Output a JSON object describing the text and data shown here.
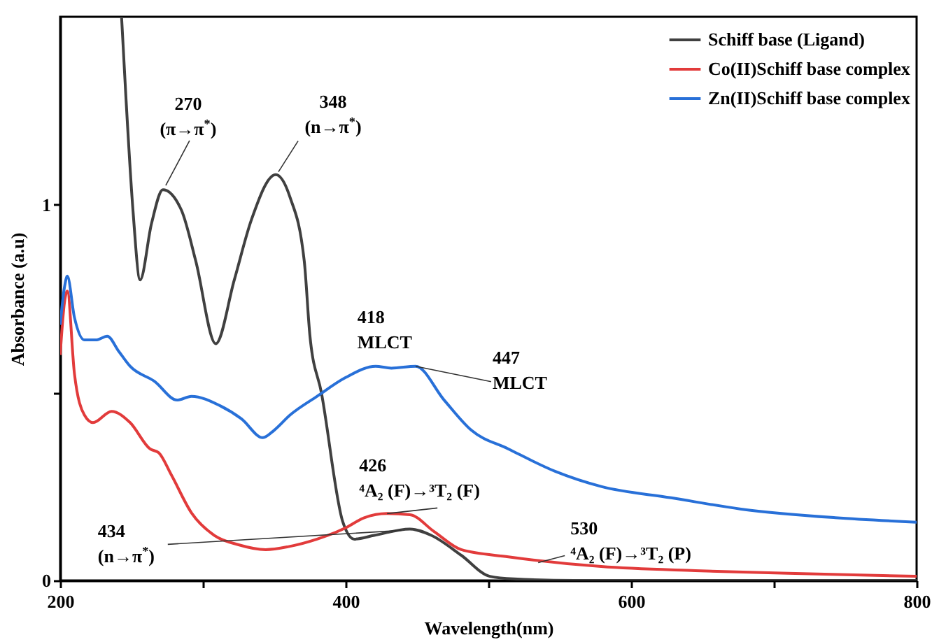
{
  "chart_data": {
    "type": "line",
    "xlabel": "Wavelength(nm)",
    "ylabel": "Absorbance (a.u)",
    "xlim": [
      200,
      800
    ],
    "ylim": [
      0,
      1.5
    ],
    "xticks": [
      200,
      {
        "value": 300,
        "label": null
      },
      400,
      {
        "value": 500,
        "label": null
      },
      600,
      {
        "value": 700,
        "label": null
      },
      800
    ],
    "yticks": [
      0,
      {
        "value": 0.5,
        "label": null
      },
      1
    ],
    "legend": "top right",
    "grid": false,
    "series": [
      {
        "name": "Schiff base (Ligand)",
        "color": "#404040",
        "x": [
          243,
          246,
          251,
          256,
          264,
          272,
          285,
          295,
          309,
          322,
          334,
          351,
          361,
          371,
          375,
          383,
          398,
          406,
          420,
          445,
          460,
          481,
          501,
          518,
          560,
          650,
          800
        ],
        "values": [
          1.5,
          1.29,
          0.985,
          0.8,
          0.95,
          1.04,
          0.985,
          0.85,
          0.63,
          0.8,
          0.96,
          1.08,
          1.02,
          0.85,
          0.65,
          0.5,
          0.156,
          0.11,
          0.12,
          0.137,
          0.12,
          0.067,
          0.011,
          0.004,
          0.0,
          0.0,
          0.0
        ]
      },
      {
        "name": "Co(II)Schiff base complex",
        "color": "#e23b3b",
        "x": [
          200,
          203,
          205,
          210,
          217,
          223,
          236,
          249,
          263,
          269,
          278,
          292,
          308,
          325,
          344,
          360,
          380,
          400,
          413,
          429,
          445,
          462,
          481,
          514,
          579,
          645,
          710,
          800
        ],
        "values": [
          0.6,
          0.74,
          0.77,
          0.55,
          0.44,
          0.42,
          0.45,
          0.42,
          0.35,
          0.34,
          0.28,
          0.18,
          0.12,
          0.095,
          0.082,
          0.09,
          0.11,
          0.14,
          0.167,
          0.178,
          0.175,
          0.13,
          0.082,
          0.063,
          0.037,
          0.026,
          0.019,
          0.011
        ]
      },
      {
        "name": "Zn(II)Schiff base complex",
        "color": "#2870d8",
        "x": [
          200,
          203,
          205,
          210,
          217,
          225,
          233,
          241,
          249,
          266,
          282,
          292,
          312,
          327,
          342,
          350,
          361,
          380,
          400,
          421,
          432,
          449,
          469,
          488,
          514,
          547,
          579,
          628,
          677,
          743,
          800
        ],
        "values": [
          0.68,
          0.78,
          0.81,
          0.7,
          0.64,
          0.64,
          0.65,
          0.61,
          0.57,
          0.53,
          0.48,
          0.49,
          0.465,
          0.43,
          0.38,
          0.4,
          0.44,
          0.49,
          0.54,
          0.57,
          0.565,
          0.57,
          0.48,
          0.4,
          0.35,
          0.29,
          0.25,
          0.22,
          0.19,
          0.167,
          0.155
        ]
      }
    ],
    "annotations": [
      {
        "text": "270\n(π→π$^{*}$)",
        "x": 272,
        "y": 1.04
      },
      {
        "text": "348\n(n→π$^{*}$)",
        "x": 350,
        "y": 1.08
      },
      {
        "text": "418\nMLCT",
        "x": 421,
        "y": 0.57
      },
      {
        "text": "447\nMLCT",
        "x": 449,
        "y": 0.57
      },
      {
        "text": "426\n⁴A₂ (F)→³T₂ (F)",
        "x": 429,
        "y": 0.178
      },
      {
        "text": "434\n(n→π$^{*}$)",
        "x": 445,
        "y": 0.137
      },
      {
        "text": "530\n⁴A₂ (F)→³T₂ (P)",
        "x": 530,
        "y": 0.055
      }
    ]
  }
}
